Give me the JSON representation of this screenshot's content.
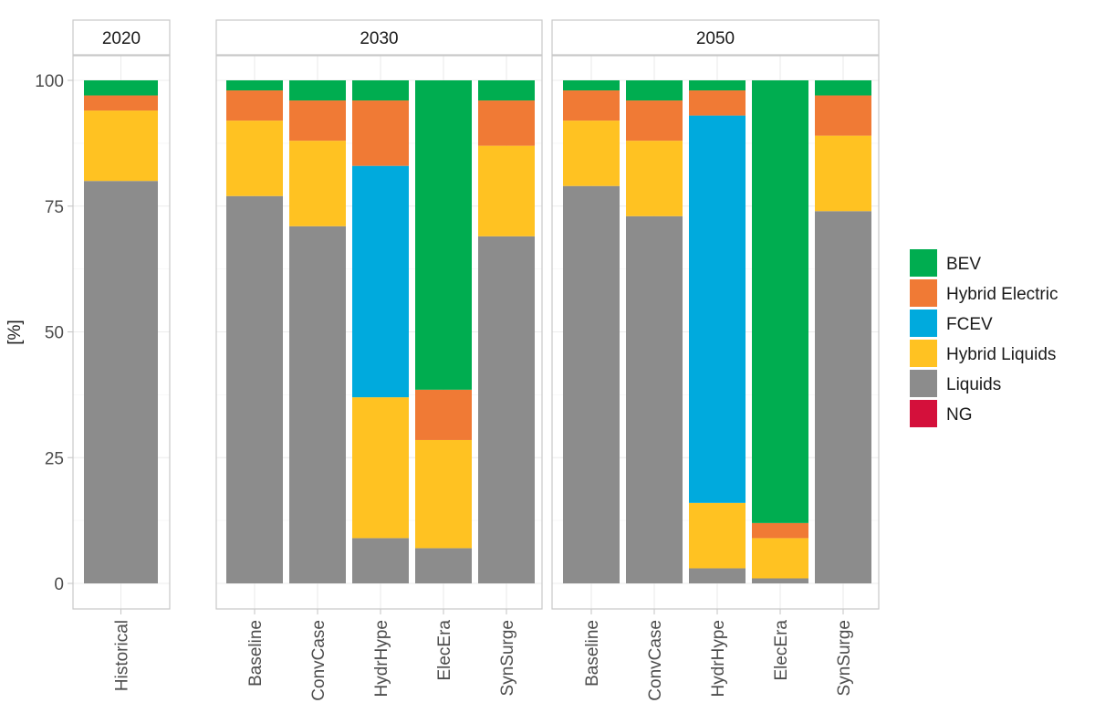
{
  "chart_data": {
    "type": "bar",
    "stacked": true,
    "ylabel": "[%]",
    "ylim": [
      0,
      100
    ],
    "yticks": [
      0,
      25,
      50,
      75,
      100
    ],
    "legend_position": "right",
    "series_order": [
      "Liquids",
      "Hybrid Liquids",
      "FCEV",
      "Hybrid Electric",
      "BEV",
      "NG"
    ],
    "legend": [
      {
        "name": "BEV",
        "color": "#00AD50"
      },
      {
        "name": "Hybrid Electric",
        "color": "#F07A35"
      },
      {
        "name": "FCEV",
        "color": "#00AADD"
      },
      {
        "name": "Hybrid Liquids",
        "color": "#FFC222"
      },
      {
        "name": "Liquids",
        "color": "#8C8C8C"
      },
      {
        "name": "NG",
        "color": "#D4103B"
      }
    ],
    "panels": [
      {
        "label": "2020",
        "bars": [
          {
            "category": "Historical",
            "values": {
              "Liquids": 80,
              "Hybrid Liquids": 14,
              "FCEV": 0,
              "Hybrid Electric": 3,
              "BEV": 3,
              "NG": 0
            }
          }
        ]
      },
      {
        "label": "2030",
        "bars": [
          {
            "category": "Baseline",
            "values": {
              "Liquids": 77,
              "Hybrid Liquids": 15,
              "FCEV": 0,
              "Hybrid Electric": 6,
              "BEV": 2,
              "NG": 0
            }
          },
          {
            "category": "ConvCase",
            "values": {
              "Liquids": 71,
              "Hybrid Liquids": 17,
              "FCEV": 0,
              "Hybrid Electric": 8,
              "BEV": 4,
              "NG": 0
            }
          },
          {
            "category": "HydrHype",
            "values": {
              "Liquids": 9,
              "Hybrid Liquids": 28,
              "FCEV": 46,
              "Hybrid Electric": 13,
              "BEV": 4,
              "NG": 0
            }
          },
          {
            "category": "ElecEra",
            "values": {
              "Liquids": 7,
              "Hybrid Liquids": 21.5,
              "FCEV": 0,
              "Hybrid Electric": 10,
              "BEV": 61.5,
              "NG": 0
            }
          },
          {
            "category": "SynSurge",
            "values": {
              "Liquids": 69,
              "Hybrid Liquids": 18,
              "FCEV": 0,
              "Hybrid Electric": 9,
              "BEV": 4,
              "NG": 0
            }
          }
        ]
      },
      {
        "label": "2050",
        "bars": [
          {
            "category": "Baseline",
            "values": {
              "Liquids": 79,
              "Hybrid Liquids": 13,
              "FCEV": 0,
              "Hybrid Electric": 6,
              "BEV": 2,
              "NG": 0
            }
          },
          {
            "category": "ConvCase",
            "values": {
              "Liquids": 73,
              "Hybrid Liquids": 15,
              "FCEV": 0,
              "Hybrid Electric": 8,
              "BEV": 4,
              "NG": 0
            }
          },
          {
            "category": "HydrHype",
            "values": {
              "Liquids": 3,
              "Hybrid Liquids": 13,
              "FCEV": 77,
              "Hybrid Electric": 5,
              "BEV": 2,
              "NG": 0
            }
          },
          {
            "category": "ElecEra",
            "values": {
              "Liquids": 1,
              "Hybrid Liquids": 8,
              "FCEV": 0,
              "Hybrid Electric": 3,
              "BEV": 88,
              "NG": 0
            }
          },
          {
            "category": "SynSurge",
            "values": {
              "Liquids": 74,
              "Hybrid Liquids": 15,
              "FCEV": 0,
              "Hybrid Electric": 8,
              "BEV": 3,
              "NG": 0
            }
          }
        ]
      }
    ]
  }
}
